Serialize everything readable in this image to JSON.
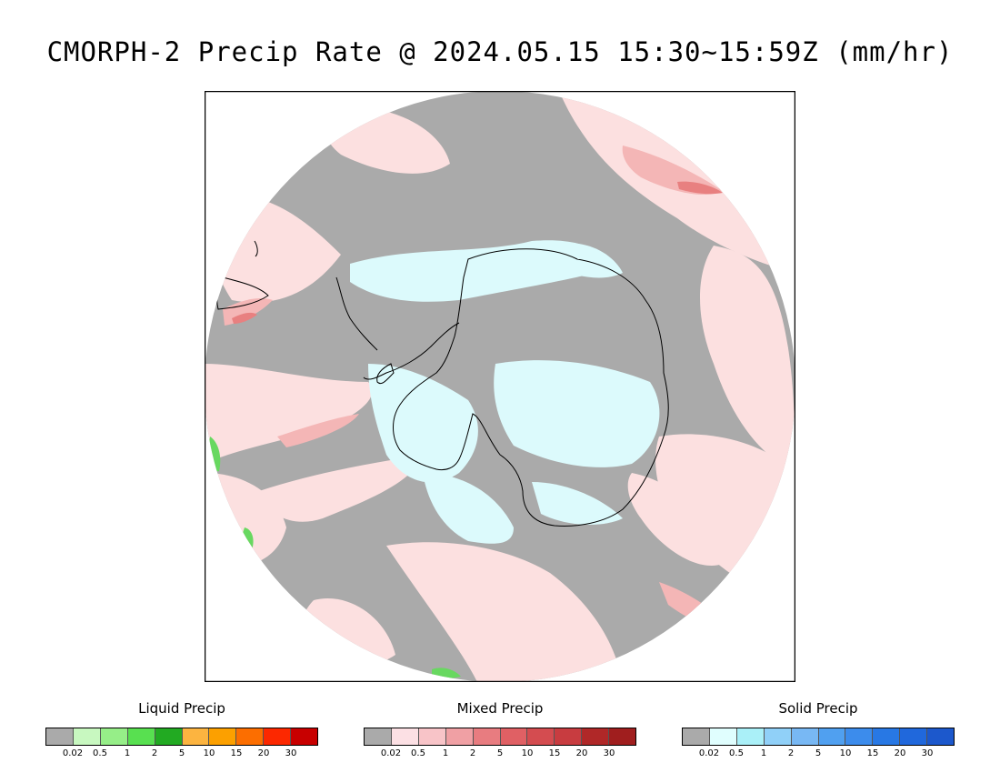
{
  "title": "CMORPH-2 Precip Rate @ 2024.05.15 15:30~15:59Z (mm/hr)",
  "map": {
    "projection": "south polar stereographic",
    "colors": {
      "background": "#aaaaaa",
      "mixed_light": "#fce0e0",
      "mixed_mid": "#f4b6b6",
      "mixed_strong": "#e88080",
      "solid_light": "#dcfafc",
      "liquid_light": "#b4f2a8",
      "liquid_mid": "#68d860",
      "coast": "#000000"
    }
  },
  "legends": [
    {
      "title": "Liquid Precip",
      "colors": [
        "#aaaaaa",
        "#c8f8c0",
        "#96ee88",
        "#58e050",
        "#22aa22",
        "#fcb440",
        "#fca000",
        "#fc6e00",
        "#fc2800",
        "#c80000"
      ],
      "ticks": [
        "0.02",
        "0.5",
        "1",
        "2",
        "5",
        "10",
        "15",
        "20",
        "30"
      ]
    },
    {
      "title": "Mixed Precip",
      "colors": [
        "#aaaaaa",
        "#fce0e4",
        "#f8c4c8",
        "#f0a0a4",
        "#e87c80",
        "#e06064",
        "#d44c50",
        "#c83c40",
        "#b02828",
        "#a01e1e"
      ],
      "ticks": [
        "0.02",
        "0.5",
        "1",
        "2",
        "5",
        "10",
        "15",
        "20",
        "30"
      ]
    },
    {
      "title": "Solid Precip",
      "colors": [
        "#aaaaaa",
        "#e0fefe",
        "#aaf0f8",
        "#90d0f8",
        "#78b8f4",
        "#50a0f0",
        "#3c8cec",
        "#2878e4",
        "#2068dc",
        "#1c58cc"
      ],
      "ticks": [
        "0.02",
        "0.5",
        "1",
        "2",
        "5",
        "10",
        "15",
        "20",
        "30"
      ]
    }
  ]
}
